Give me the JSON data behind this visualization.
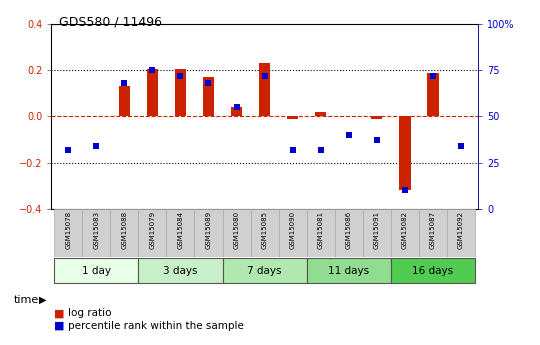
{
  "title": "GDS580 / 11496",
  "samples": [
    "GSM15078",
    "GSM15083",
    "GSM15088",
    "GSM15079",
    "GSM15084",
    "GSM15089",
    "GSM15080",
    "GSM15085",
    "GSM15090",
    "GSM15081",
    "GSM15086",
    "GSM15091",
    "GSM15082",
    "GSM15087",
    "GSM15092"
  ],
  "log_ratio": [
    0.0,
    0.0,
    0.13,
    0.205,
    0.205,
    0.17,
    0.04,
    0.23,
    -0.01,
    0.02,
    0.0,
    -0.01,
    -0.32,
    0.19,
    0.0
  ],
  "percentile": [
    32,
    34,
    68,
    75,
    72,
    68,
    55,
    72,
    32,
    32,
    40,
    37,
    10,
    72,
    34
  ],
  "groups": [
    {
      "label": "1 day",
      "indices": [
        0,
        1,
        2
      ],
      "color": "#e8ffe8"
    },
    {
      "label": "3 days",
      "indices": [
        3,
        4,
        5
      ],
      "color": "#c8f0c8"
    },
    {
      "label": "7 days",
      "indices": [
        6,
        7,
        8
      ],
      "color": "#b0e8b0"
    },
    {
      "label": "11 days",
      "indices": [
        9,
        10,
        11
      ],
      "color": "#90dc90"
    },
    {
      "label": "16 days",
      "indices": [
        12,
        13,
        14
      ],
      "color": "#50cc50"
    }
  ],
  "bar_color": "#cc2200",
  "dot_color": "#0000cc",
  "ylim_left": [
    -0.4,
    0.4
  ],
  "ylim_right": [
    0,
    100
  ],
  "yticks_left": [
    -0.4,
    -0.2,
    0.0,
    0.2,
    0.4
  ],
  "yticks_right": [
    0,
    25,
    50,
    75,
    100
  ],
  "ytick_labels_right": [
    "0",
    "25",
    "50",
    "75",
    "100%"
  ],
  "legend_log_ratio": "log ratio",
  "legend_percentile": "percentile rank within the sample",
  "time_label": "time",
  "bg_color": "#ffffff"
}
